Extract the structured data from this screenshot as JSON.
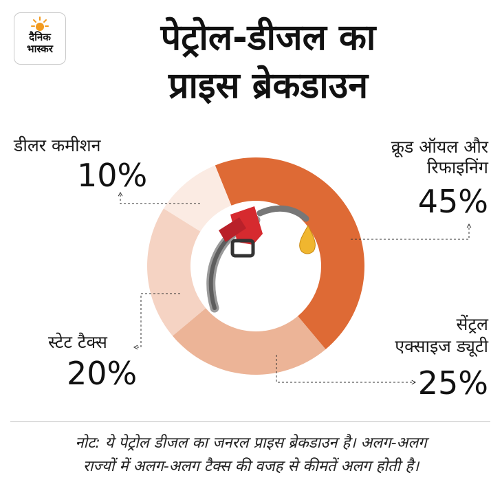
{
  "logo": {
    "line1": "दैनिक",
    "line2": "भास्कर"
  },
  "title_line1": "पेट्रोल-डीजल का",
  "title_line2": "प्राइस ब्रेकडाउन",
  "chart_data": {
    "type": "pie",
    "categories": [
      "क्रूड ऑयल और रिफाइनिंग",
      "सेंट्रल एक्साइज ड्यूटी",
      "स्टेट टैक्स",
      "डीलर कमीशन"
    ],
    "values": [
      45,
      25,
      20,
      10
    ],
    "value_labels": [
      "45%",
      "25%",
      "20%",
      "10%"
    ],
    "colors": [
      "#de6a35",
      "#ecb497",
      "#f5d3c3",
      "#fbebe3"
    ]
  },
  "labels": {
    "crude_line1": "क्रूड ऑयल और",
    "crude_line2": "रिफाइनिंग",
    "excise_line1": "सेंट्रल",
    "excise_line2": "एक्साइज ड्यूटी",
    "state": "स्टेट टैक्स",
    "dealer": "डीलर कमीशन"
  },
  "note_line1": "नोट: ये पेट्रोल डीजल का जनरल प्राइस ब्रेकडाउन है। अलग-अलग",
  "note_line2": "राज्यों में अलग-अलग टैक्स की वजह से कीमतें अलग होती है।",
  "icons": {
    "center": "fuel-nozzle-icon",
    "logo": "sun-icon"
  }
}
